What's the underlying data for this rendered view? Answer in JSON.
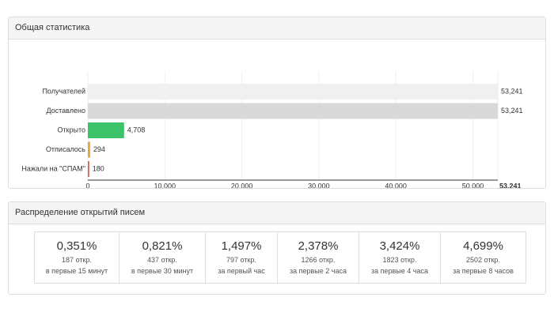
{
  "chart_panel_title": "Общая статистика",
  "chart_data": {
    "type": "bar",
    "orientation": "horizontal",
    "categories": [
      "Получателей",
      "Доставлено",
      "Открыто",
      "Отписалось",
      "Нажали на \"СПАМ\""
    ],
    "values": [
      53241,
      53241,
      4708,
      294,
      180
    ],
    "value_labels": [
      "53,241",
      "53,241",
      "4,708",
      "294",
      "180"
    ],
    "colors": [
      "#f0f0f0",
      "#d9d9d9",
      "#3cc36a",
      "#e8a33c",
      "#e0584c"
    ],
    "xlim": [
      0,
      53241
    ],
    "xticks": [
      0,
      {
        "value": 10000,
        "label": "10,000"
      },
      {
        "value": 20000,
        "label": "20,000"
      },
      {
        "value": 30000,
        "label": "30,000"
      },
      {
        "value": 40000,
        "label": "40,000"
      },
      {
        "value": 50000,
        "label": "50,000"
      },
      {
        "value": 53241,
        "label": "53,241"
      }
    ],
    "grid": true
  },
  "distribution": {
    "title": "Распределение открытий писем",
    "cells": [
      {
        "percent": "0,351%",
        "opens": "187 откр.",
        "period": "в первые 15 минут"
      },
      {
        "percent": "0,821%",
        "opens": "437 откр.",
        "period": "в первые 30 минут"
      },
      {
        "percent": "1,497%",
        "opens": "797 откр.",
        "period": "за первый час"
      },
      {
        "percent": "2,378%",
        "opens": "1266 откр.",
        "period": "за первые 2 часа"
      },
      {
        "percent": "3,424%",
        "opens": "1823 откр.",
        "period": "за первые 4 часа"
      },
      {
        "percent": "4,699%",
        "opens": "2502 откр.",
        "period": "за первые 8 часов"
      }
    ]
  }
}
